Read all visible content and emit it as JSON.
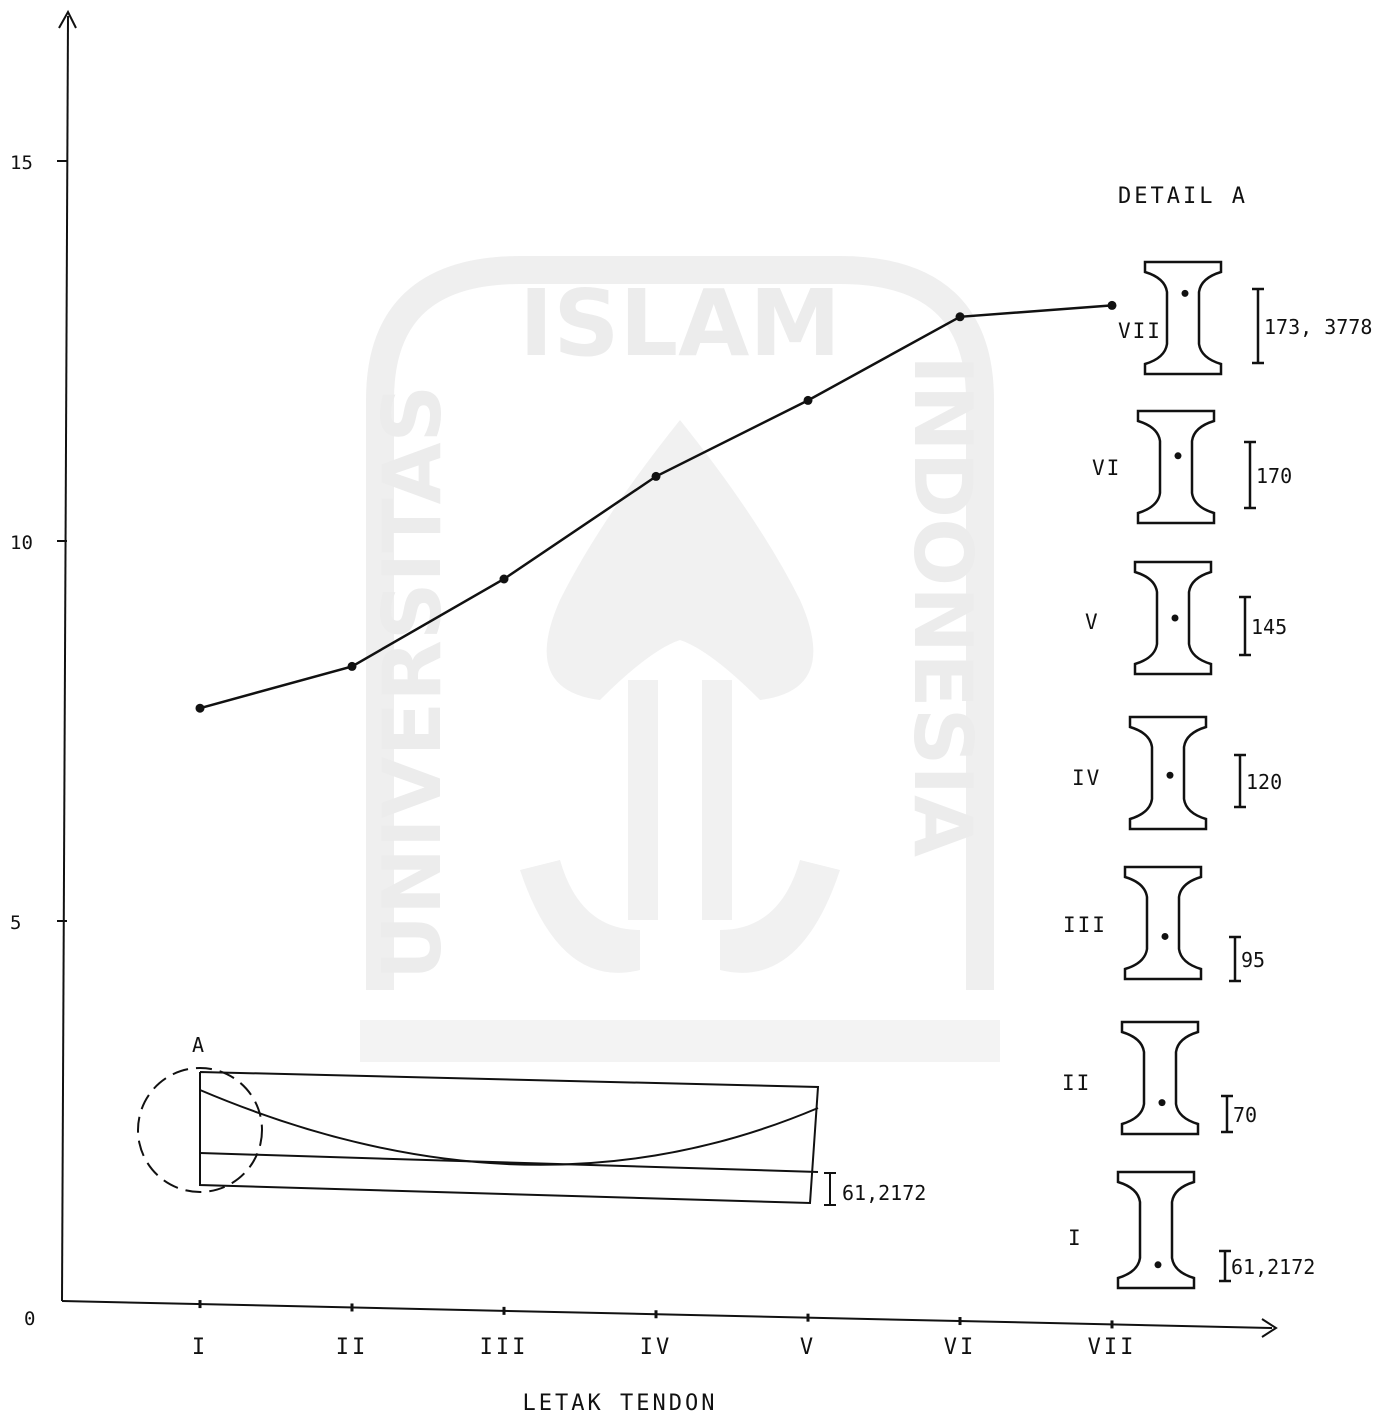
{
  "chart_data": {
    "type": "line",
    "title": "",
    "xlabel": "LETAK  TENDON",
    "ylabel": "",
    "categories": [
      "I",
      "II",
      "III",
      "IV",
      "V",
      "VI",
      "VII"
    ],
    "series": [
      {
        "values": [
          7.8,
          8.35,
          9.5,
          10.85,
          11.85,
          12.95,
          13.1
        ]
      }
    ],
    "ylim": [
      0,
      17
    ],
    "yticks": [
      "0",
      "5",
      "10",
      "15"
    ],
    "grid": false
  },
  "beam_sketch": {
    "marker": "A",
    "dimension": "61,2172"
  },
  "detail": {
    "title": "DETAIL  A",
    "sections": [
      {
        "label": "VII",
        "dimension": "173, 3778"
      },
      {
        "label": "VI",
        "dimension": "170"
      },
      {
        "label": "V",
        "dimension": "145"
      },
      {
        "label": "IV",
        "dimension": "120"
      },
      {
        "label": "III",
        "dimension": "95"
      },
      {
        "label": "II",
        "dimension": "70"
      },
      {
        "label": "I",
        "dimension": "61,2172"
      }
    ]
  },
  "watermark": {
    "arc_top": "ISLAM",
    "arc_left": "UNIVERSITAS",
    "arc_right": "INDONESIA"
  },
  "colors": {
    "ink": "#111111",
    "watermark": "#ececec",
    "background": "#ffffff"
  }
}
